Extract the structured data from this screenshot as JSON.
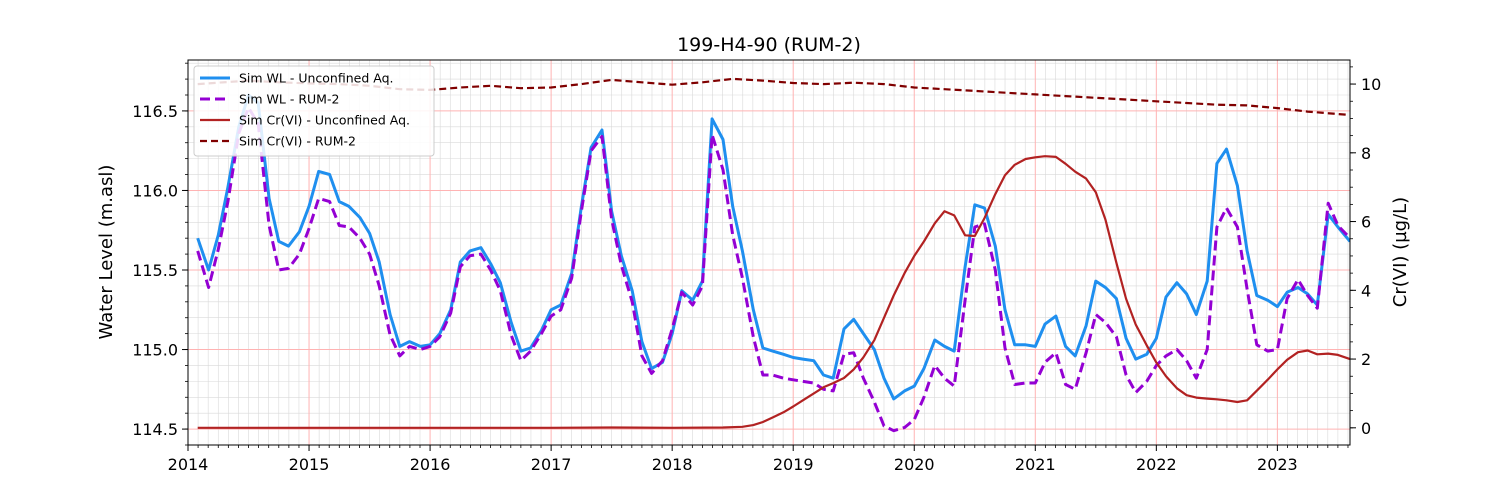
{
  "chart_data": {
    "type": "line",
    "title": "199-H4-90 (RUM-2)",
    "xlabel": "",
    "ylabel": "Water Level (m.asl)",
    "y2label": "Cr(VI) (µg/L)",
    "xlim": [
      2014.0,
      2023.6
    ],
    "ylim": [
      114.4,
      116.82
    ],
    "y2lim": [
      -0.5,
      10.7
    ],
    "x_ticks": [
      "2014",
      "2015",
      "2016",
      "2017",
      "2018",
      "2019",
      "2020",
      "2021",
      "2022",
      "2023"
    ],
    "y_ticks": [
      "114.5",
      "115.0",
      "115.5",
      "116.0",
      "116.5"
    ],
    "y2_ticks": [
      "0",
      "2",
      "4",
      "6",
      "8",
      "10"
    ],
    "grid": true,
    "legend_position": "top-left",
    "series": [
      {
        "name": "Sim WL - Unconfined Aq.",
        "axis": "left",
        "color": "#1f8fef",
        "style": "solid",
        "x": [
          2014.08,
          2014.17,
          2014.25,
          2014.33,
          2014.42,
          2014.5,
          2014.58,
          2014.67,
          2014.75,
          2014.83,
          2014.92,
          2015.0,
          2015.08,
          2015.17,
          2015.25,
          2015.33,
          2015.42,
          2015.5,
          2015.58,
          2015.67,
          2015.75,
          2015.83,
          2015.92,
          2016.0,
          2016.08,
          2016.17,
          2016.25,
          2016.33,
          2016.42,
          2016.5,
          2016.58,
          2016.67,
          2016.75,
          2016.83,
          2016.92,
          2017.0,
          2017.08,
          2017.17,
          2017.25,
          2017.33,
          2017.42,
          2017.5,
          2017.58,
          2017.67,
          2017.75,
          2017.83,
          2017.92,
          2018.0,
          2018.08,
          2018.17,
          2018.25,
          2018.33,
          2018.42,
          2018.5,
          2018.58,
          2018.67,
          2018.75,
          2018.83,
          2018.92,
          2019.0,
          2019.08,
          2019.17,
          2019.25,
          2019.33,
          2019.42,
          2019.5,
          2019.58,
          2019.67,
          2019.75,
          2019.83,
          2019.92,
          2020.0,
          2020.08,
          2020.17,
          2020.25,
          2020.33,
          2020.42,
          2020.5,
          2020.58,
          2020.67,
          2020.75,
          2020.83,
          2020.92,
          2021.0,
          2021.08,
          2021.17,
          2021.25,
          2021.33,
          2021.42,
          2021.5,
          2021.58,
          2021.67,
          2021.75,
          2021.83,
          2021.92,
          2022.0,
          2022.08,
          2022.17,
          2022.25,
          2022.33,
          2022.42,
          2022.5,
          2022.58,
          2022.67,
          2022.75,
          2022.83,
          2022.92,
          2023.0,
          2023.08,
          2023.17,
          2023.25,
          2023.33,
          2023.42,
          2023.5,
          2023.6
        ],
        "y": [
          115.7,
          115.5,
          115.72,
          116.02,
          116.4,
          116.6,
          116.55,
          115.95,
          115.68,
          115.65,
          115.74,
          115.9,
          116.12,
          116.1,
          115.93,
          115.9,
          115.83,
          115.73,
          115.55,
          115.22,
          115.02,
          115.05,
          115.02,
          115.03,
          115.1,
          115.25,
          115.55,
          115.62,
          115.64,
          115.54,
          115.42,
          115.17,
          114.99,
          115.01,
          115.12,
          115.25,
          115.28,
          115.48,
          115.9,
          116.27,
          116.38,
          115.87,
          115.59,
          115.37,
          115.05,
          114.88,
          114.92,
          115.1,
          115.37,
          115.31,
          115.43,
          116.45,
          116.32,
          115.9,
          115.62,
          115.25,
          115.01,
          114.99,
          114.97,
          114.95,
          114.94,
          114.93,
          114.84,
          114.82,
          115.13,
          115.19,
          115.1,
          115.0,
          114.82,
          114.69,
          114.74,
          114.77,
          114.88,
          115.06,
          115.02,
          114.99,
          115.52,
          115.91,
          115.89,
          115.65,
          115.25,
          115.03,
          115.03,
          115.02,
          115.16,
          115.21,
          115.02,
          114.96,
          115.15,
          115.43,
          115.39,
          115.32,
          115.07,
          114.94,
          114.97,
          115.07,
          115.33,
          115.42,
          115.35,
          115.22,
          115.43,
          116.17,
          116.26,
          116.03,
          115.62,
          115.34,
          115.31,
          115.27,
          115.36,
          115.39,
          115.35,
          115.28,
          115.85,
          115.77,
          115.68
        ]
      },
      {
        "name": "Sim WL - RUM-2",
        "axis": "left",
        "color": "#9400d3",
        "style": "dashed",
        "x": [
          2014.08,
          2014.17,
          2014.25,
          2014.33,
          2014.42,
          2014.5,
          2014.58,
          2014.67,
          2014.75,
          2014.83,
          2014.92,
          2015.0,
          2015.08,
          2015.17,
          2015.25,
          2015.33,
          2015.42,
          2015.5,
          2015.58,
          2015.67,
          2015.75,
          2015.83,
          2015.92,
          2016.0,
          2016.08,
          2016.17,
          2016.25,
          2016.33,
          2016.42,
          2016.5,
          2016.58,
          2016.67,
          2016.75,
          2016.83,
          2016.92,
          2017.0,
          2017.08,
          2017.17,
          2017.25,
          2017.33,
          2017.42,
          2017.5,
          2017.58,
          2017.67,
          2017.75,
          2017.83,
          2017.92,
          2018.0,
          2018.08,
          2018.17,
          2018.25,
          2018.33,
          2018.42,
          2018.5,
          2018.58,
          2018.67,
          2018.75,
          2018.83,
          2018.92,
          2019.0,
          2019.08,
          2019.17,
          2019.25,
          2019.33,
          2019.42,
          2019.5,
          2019.58,
          2019.67,
          2019.75,
          2019.83,
          2019.92,
          2020.0,
          2020.08,
          2020.17,
          2020.25,
          2020.33,
          2020.42,
          2020.5,
          2020.58,
          2020.67,
          2020.75,
          2020.83,
          2020.92,
          2021.0,
          2021.08,
          2021.17,
          2021.25,
          2021.33,
          2021.42,
          2021.5,
          2021.58,
          2021.67,
          2021.75,
          2021.83,
          2021.92,
          2022.0,
          2022.08,
          2022.17,
          2022.25,
          2022.33,
          2022.42,
          2022.5,
          2022.58,
          2022.67,
          2022.75,
          2022.83,
          2022.92,
          2023.0,
          2023.08,
          2023.17,
          2023.25,
          2023.33,
          2023.42,
          2023.5,
          2023.6
        ],
        "y": [
          115.62,
          115.39,
          115.63,
          115.93,
          116.36,
          116.52,
          116.42,
          115.78,
          115.5,
          115.51,
          115.6,
          115.76,
          115.95,
          115.93,
          115.78,
          115.77,
          115.7,
          115.6,
          115.4,
          115.09,
          114.96,
          115.02,
          115.0,
          115.02,
          115.08,
          115.23,
          115.52,
          115.59,
          115.6,
          115.5,
          115.37,
          115.09,
          114.93,
          114.99,
          115.1,
          115.21,
          115.25,
          115.45,
          115.87,
          116.25,
          116.34,
          115.82,
          115.53,
          115.3,
          114.96,
          114.85,
          114.93,
          115.13,
          115.36,
          115.28,
          115.4,
          116.35,
          116.13,
          115.72,
          115.45,
          115.08,
          114.84,
          114.84,
          114.82,
          114.81,
          114.8,
          114.79,
          114.75,
          114.74,
          114.97,
          114.98,
          114.82,
          114.67,
          114.52,
          114.49,
          114.51,
          114.56,
          114.7,
          114.9,
          114.82,
          114.77,
          115.31,
          115.77,
          115.79,
          115.5,
          115.01,
          114.78,
          114.79,
          114.79,
          114.92,
          114.98,
          114.78,
          114.75,
          114.98,
          115.22,
          115.17,
          115.08,
          114.84,
          114.73,
          114.8,
          114.9,
          114.96,
          115.0,
          114.93,
          114.82,
          115.0,
          115.77,
          115.89,
          115.77,
          115.38,
          115.03,
          114.99,
          115.0,
          115.32,
          115.44,
          115.34,
          115.26,
          115.92,
          115.78,
          115.7
        ]
      },
      {
        "name": "Sim Cr(VI) - Unconfined Aq.",
        "axis": "right",
        "color": "#b22222",
        "style": "solid",
        "x": [
          2014.08,
          2014.5,
          2015.0,
          2015.5,
          2016.0,
          2016.5,
          2017.0,
          2017.5,
          2018.0,
          2018.42,
          2018.58,
          2018.67,
          2018.75,
          2018.83,
          2018.92,
          2019.0,
          2019.08,
          2019.17,
          2019.25,
          2019.33,
          2019.42,
          2019.5,
          2019.58,
          2019.67,
          2019.75,
          2019.83,
          2019.92,
          2020.0,
          2020.08,
          2020.17,
          2020.25,
          2020.33,
          2020.42,
          2020.5,
          2020.58,
          2020.67,
          2020.75,
          2020.83,
          2020.92,
          2021.0,
          2021.08,
          2021.17,
          2021.25,
          2021.33,
          2021.42,
          2021.5,
          2021.58,
          2021.67,
          2021.75,
          2021.83,
          2021.92,
          2022.0,
          2022.08,
          2022.17,
          2022.25,
          2022.33,
          2022.42,
          2022.5,
          2022.58,
          2022.67,
          2022.75,
          2022.83,
          2022.92,
          2023.0,
          2023.08,
          2023.17,
          2023.25,
          2023.33,
          2023.42,
          2023.5,
          2023.6
        ],
        "y": [
          0.0,
          0.0,
          0.0,
          0.0,
          0.0,
          0.0,
          0.0,
          0.01,
          0.0,
          0.01,
          0.03,
          0.08,
          0.17,
          0.3,
          0.45,
          0.62,
          0.8,
          1.0,
          1.18,
          1.3,
          1.45,
          1.7,
          2.05,
          2.55,
          3.2,
          3.85,
          4.5,
          5.0,
          5.42,
          5.95,
          6.3,
          6.18,
          5.6,
          5.58,
          6.1,
          6.8,
          7.35,
          7.65,
          7.82,
          7.87,
          7.9,
          7.88,
          7.68,
          7.45,
          7.25,
          6.85,
          6.05,
          4.8,
          3.75,
          3.0,
          2.4,
          1.9,
          1.5,
          1.15,
          0.95,
          0.88,
          0.85,
          0.83,
          0.8,
          0.75,
          0.8,
          1.08,
          1.4,
          1.7,
          1.98,
          2.2,
          2.25,
          2.14,
          2.16,
          2.12,
          2.0
        ]
      },
      {
        "name": "Sim Cr(VI) - RUM-2",
        "axis": "right",
        "color": "#800000",
        "style": "dashed",
        "x": [
          2014.08,
          2014.5,
          2014.75,
          2015.0,
          2015.25,
          2015.5,
          2015.75,
          2016.0,
          2016.25,
          2016.5,
          2016.75,
          2017.0,
          2017.25,
          2017.5,
          2017.75,
          2018.0,
          2018.25,
          2018.5,
          2018.75,
          2019.0,
          2019.25,
          2019.5,
          2019.75,
          2020.0,
          2020.25,
          2020.5,
          2020.75,
          2021.0,
          2021.25,
          2021.5,
          2021.75,
          2022.0,
          2022.25,
          2022.5,
          2022.75,
          2023.0,
          2023.25,
          2023.6
        ],
        "y": [
          10.0,
          10.1,
          10.05,
          10.02,
          10.0,
          9.95,
          9.85,
          9.83,
          9.9,
          9.95,
          9.88,
          9.9,
          10.0,
          10.12,
          10.05,
          9.98,
          10.05,
          10.15,
          10.1,
          10.03,
          10.0,
          10.04,
          10.0,
          9.9,
          9.85,
          9.8,
          9.75,
          9.7,
          9.65,
          9.6,
          9.55,
          9.5,
          9.45,
          9.4,
          9.38,
          9.3,
          9.2,
          9.1
        ]
      }
    ]
  }
}
